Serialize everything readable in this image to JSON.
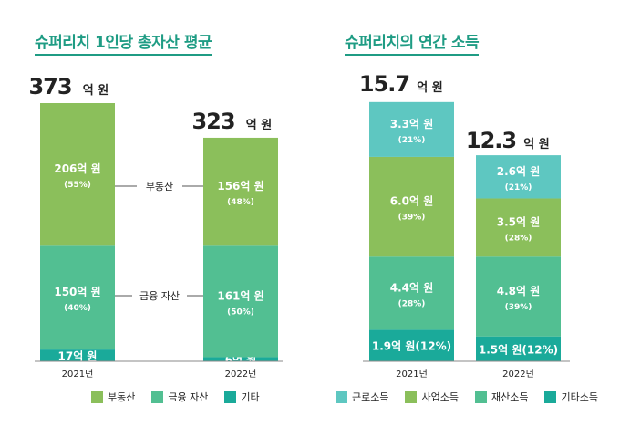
{
  "charts": {
    "left": {
      "title": "슈퍼리치 1인당 총자산 평균",
      "unit": "억 원",
      "callouts": [
        "부동산",
        "금융 자산"
      ],
      "legend": [
        {
          "label": "부동산",
          "color": "#8bbf5b"
        },
        {
          "label": "금융 자산",
          "color": "#52bf92"
        },
        {
          "label": "기타",
          "color": "#1aaa9a"
        }
      ]
    },
    "right": {
      "title": "슈퍼리치의 연간 소득",
      "unit": "억 원",
      "legend": [
        {
          "label": "근로소득",
          "color": "#5ec7c1"
        },
        {
          "label": "사업소득",
          "color": "#8bbf5b"
        },
        {
          "label": "재산소득",
          "color": "#52bf92"
        },
        {
          "label": "기타소득",
          "color": "#1aaa9a"
        }
      ]
    }
  },
  "chart_data": [
    {
      "type": "bar",
      "stacked": true,
      "title": "슈퍼리치 1인당 총자산 평균",
      "categories": [
        "2021년",
        "2022년"
      ],
      "totals": [
        "373",
        "323"
      ],
      "total_values": [
        373,
        323
      ],
      "series": [
        {
          "name": "기타",
          "color": "#1aaa9a",
          "values": [
            17,
            6
          ],
          "labels": [
            "17억 원",
            "6억 원"
          ],
          "percent_labels": [
            "",
            ""
          ]
        },
        {
          "name": "금융 자산",
          "color": "#52bf92",
          "values": [
            150,
            161
          ],
          "labels": [
            "150억 원",
            "161억 원"
          ],
          "percent_labels": [
            "(40%)",
            "(50%)"
          ]
        },
        {
          "name": "부동산",
          "color": "#8bbf5b",
          "values": [
            206,
            156
          ],
          "labels": [
            "206억 원",
            "156억 원"
          ],
          "percent_labels": [
            "(55%)",
            "(48%)"
          ]
        }
      ]
    },
    {
      "type": "bar",
      "stacked": true,
      "title": "슈퍼리치의 연간 소득",
      "categories": [
        "2021년",
        "2022년"
      ],
      "totals": [
        "15.7",
        "12.3"
      ],
      "total_values": [
        15.7,
        12.3
      ],
      "series": [
        {
          "name": "기타소득",
          "color": "#1aaa9a",
          "values": [
            1.9,
            1.5
          ],
          "labels": [
            "1.9억 원(12%)",
            "1.5억 원(12%)"
          ],
          "percent_labels": [
            "",
            ""
          ]
        },
        {
          "name": "재산소득",
          "color": "#52bf92",
          "values": [
            4.4,
            4.8
          ],
          "labels": [
            "4.4억 원",
            "4.8억 원"
          ],
          "percent_labels": [
            "(28%)",
            "(39%)"
          ]
        },
        {
          "name": "사업소득",
          "color": "#8bbf5b",
          "values": [
            6.0,
            3.5
          ],
          "labels": [
            "6.0억 원",
            "3.5억 원"
          ],
          "percent_labels": [
            "(39%)",
            "(28%)"
          ]
        },
        {
          "name": "근로소득",
          "color": "#5ec7c1",
          "values": [
            3.3,
            2.6
          ],
          "labels": [
            "3.3억 원",
            "2.6억 원"
          ],
          "percent_labels": [
            "(21%)",
            "(21%)"
          ]
        }
      ]
    }
  ]
}
